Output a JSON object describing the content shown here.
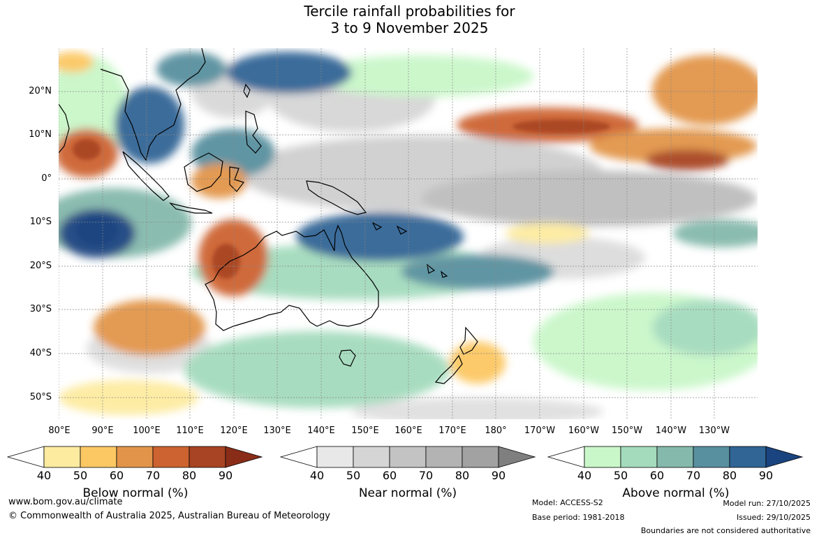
{
  "title_line1": "Tercile rainfall probabilities for",
  "title_line2": "3 to 9 November 2025",
  "lat_labels": [
    "20°N",
    "10°N",
    "0°",
    "10°S",
    "20°S",
    "30°S",
    "40°S",
    "50°S"
  ],
  "lon_labels": [
    "80°E",
    "90°E",
    "100°E",
    "110°E",
    "120°E",
    "130°E",
    "140°E",
    "150°E",
    "160°E",
    "170°E",
    "180°",
    "170°W",
    "160°W",
    "150°W",
    "140°W",
    "130°W"
  ],
  "colorbars": [
    {
      "label": "Below normal (%)",
      "ticks": [
        "40",
        "50",
        "60",
        "70",
        "80",
        "90"
      ],
      "colors": [
        "#ffffff",
        "#fdeba0",
        "#fcc863",
        "#e2954a",
        "#cd6330",
        "#a84423",
        "#8a2d18"
      ]
    },
    {
      "label": "Near normal (%)",
      "ticks": [
        "40",
        "50",
        "60",
        "70",
        "80",
        "90"
      ],
      "colors": [
        "#ffffff",
        "#e8e8e8",
        "#d5d5d5",
        "#c3c3c3",
        "#b3b3b3",
        "#a2a2a2",
        "#7f7f7f"
      ]
    },
    {
      "label": "Above normal (%)",
      "ticks": [
        "40",
        "50",
        "60",
        "70",
        "80",
        "90"
      ],
      "colors": [
        "#ffffff",
        "#c9f7c9",
        "#a4dbbd",
        "#85b9ac",
        "#58909f",
        "#316595",
        "#1a4480"
      ]
    }
  ],
  "footer": {
    "website": "www.bom.gov.au/climate",
    "copyright": "© Commonwealth of Australia 2025, Australian Bureau of Meteorology",
    "model": "Model: ACCESS-S2",
    "base_period": "Base period: 1981-2018",
    "model_run": "Model run: 27/10/2025",
    "issued": "Issued: 29/10/2025",
    "disclaimer": "Boundaries are not considered authoritative"
  }
}
